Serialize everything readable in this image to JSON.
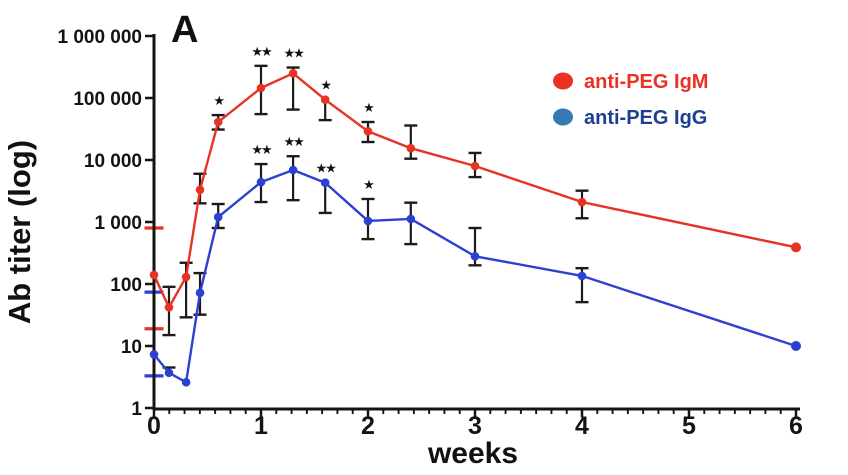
{
  "figure": {
    "panel_label": "A",
    "background": "#ffffff"
  },
  "chart_data": {
    "type": "line",
    "title": "",
    "xlabel": "weeks",
    "ylabel": "Ab titer (log)",
    "y_scale": "log10",
    "xlim": [
      0,
      6
    ],
    "ylim": [
      1,
      1000000
    ],
    "grid": false,
    "x_ticks": [
      {
        "value": 0,
        "label": "0"
      },
      {
        "value": 1,
        "label": "1"
      },
      {
        "value": 2,
        "label": "2"
      },
      {
        "value": 3,
        "label": "3"
      },
      {
        "value": 4,
        "label": "4"
      },
      {
        "value": 5,
        "label": "5"
      },
      {
        "value": 6,
        "label": "6"
      }
    ],
    "x_minor_ticks_per_week": 7,
    "y_ticks": [
      {
        "value": 1,
        "label": "1"
      },
      {
        "value": 10,
        "label": "10"
      },
      {
        "value": 100,
        "label": "100"
      },
      {
        "value": 1000,
        "label": "1 000"
      },
      {
        "value": 10000,
        "label": "10 000"
      },
      {
        "value": 100000,
        "label": "100 000"
      },
      {
        "value": 1000000,
        "label": "1 000 000"
      }
    ],
    "legend": {
      "position": "top-right",
      "items": [
        {
          "label": "anti-PEG IgM",
          "dot_color": "#e93223",
          "text_color": "#e93223"
        },
        {
          "label": "anti-PEG IgG",
          "dot_color": "#3579b5",
          "text_color": "#1e3f8f"
        }
      ]
    },
    "significance_symbol": "star",
    "error_bar_color": "#1b1b1b",
    "series": [
      {
        "name": "anti-PEG IgM",
        "color": "#e73325",
        "points": [
          {
            "x": 0,
            "y": 140,
            "err_lo": 19,
            "err_hi": 800,
            "err_on_axis": true
          },
          {
            "x": 0.14,
            "y": 42,
            "err_lo": 15,
            "err_hi": 90
          },
          {
            "x": 0.3,
            "y": 130,
            "err_lo": 29,
            "err_hi": 220
          },
          {
            "x": 0.43,
            "y": 3300,
            "err_lo": 2000,
            "err_hi": 6000
          },
          {
            "x": 0.6,
            "y": 41000,
            "err_lo": 31000,
            "err_hi": 53000,
            "sig": "*"
          },
          {
            "x": 1,
            "y": 145000,
            "err_lo": 55000,
            "err_hi": 330000,
            "sig": "**"
          },
          {
            "x": 1.3,
            "y": 250000,
            "err_lo": 65000,
            "err_hi": 310000,
            "sig": "**"
          },
          {
            "x": 1.6,
            "y": 94000,
            "err_lo": 44000,
            "sig": "*"
          },
          {
            "x": 2,
            "y": 29000,
            "err_lo": 19500,
            "err_hi": 41000,
            "sig": "*"
          },
          {
            "x": 2.4,
            "y": 15500,
            "err_lo": 10500,
            "err_hi": 36000
          },
          {
            "x": 3,
            "y": 8000,
            "err_lo": 5300,
            "err_hi": 13000
          },
          {
            "x": 4,
            "y": 2100,
            "err_lo": 1150,
            "err_hi": 3200
          },
          {
            "x": 6,
            "y": 390
          }
        ]
      },
      {
        "name": "anti-PEG IgG",
        "color": "#2c40d2",
        "points": [
          {
            "x": 0,
            "y": 7.3,
            "err_lo": 3.3,
            "err_hi": 74,
            "err_on_axis": true
          },
          {
            "x": 0.14,
            "y": 3.7,
            "err_hi": 4.5
          },
          {
            "x": 0.3,
            "y": 2.6
          },
          {
            "x": 0.43,
            "y": 72,
            "err_lo": 32,
            "err_hi": 150
          },
          {
            "x": 0.6,
            "y": 1200,
            "err_lo": 800,
            "err_hi": 1950
          },
          {
            "x": 1,
            "y": 4400,
            "err_lo": 2100,
            "err_hi": 8600,
            "sig": "**"
          },
          {
            "x": 1.3,
            "y": 6900,
            "err_lo": 2250,
            "err_hi": 11500,
            "sig": "**"
          },
          {
            "x": 1.6,
            "y": 4300,
            "err_lo": 1400,
            "sig": "**"
          },
          {
            "x": 2,
            "y": 1040,
            "err_lo": 530,
            "err_hi": 2350,
            "sig": "*"
          },
          {
            "x": 2.4,
            "y": 1120,
            "err_lo": 440,
            "err_hi": 2050
          },
          {
            "x": 3,
            "y": 280,
            "err_lo": 200,
            "err_hi": 800
          },
          {
            "x": 4,
            "y": 135,
            "err_lo": 51,
            "err_hi": 180
          },
          {
            "x": 6,
            "y": 10
          }
        ]
      }
    ]
  }
}
